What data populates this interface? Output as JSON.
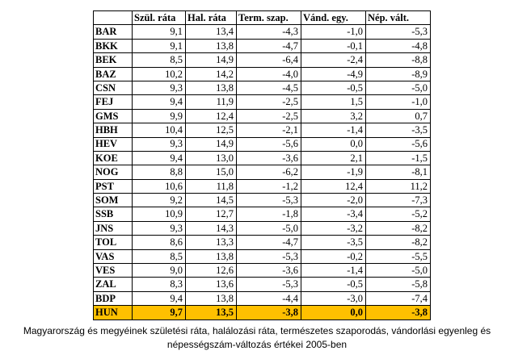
{
  "table": {
    "headers": [
      "",
      "Szül. ráta",
      "Hal. ráta",
      "Term. szap.",
      "Vánd. egy.",
      "Nép. vált."
    ],
    "rows": [
      [
        "BAR",
        "9,1",
        "13,4",
        "-4,3",
        "-1,0",
        "-5,3"
      ],
      [
        "BKK",
        "9,1",
        "13,8",
        "-4,7",
        "-0,1",
        "-4,8"
      ],
      [
        "BEK",
        "8,5",
        "14,9",
        "-6,4",
        "-2,4",
        "-8,8"
      ],
      [
        "BAZ",
        "10,2",
        "14,2",
        "-4,0",
        "-4,9",
        "-8,9"
      ],
      [
        "CSN",
        "9,3",
        "13,8",
        "-4,5",
        "-0,5",
        "-5,0"
      ],
      [
        "FEJ",
        "9,4",
        "11,9",
        "-2,5",
        "1,5",
        "-1,0"
      ],
      [
        "GMS",
        "9,9",
        "12,4",
        "-2,5",
        "3,2",
        "0,7"
      ],
      [
        "HBH",
        "10,4",
        "12,5",
        "-2,1",
        "-1,4",
        "-3,5"
      ],
      [
        "HEV",
        "9,3",
        "14,9",
        "-5,6",
        "0,0",
        "-5,6"
      ],
      [
        "KOE",
        "9,4",
        "13,0",
        "-3,6",
        "2,1",
        "-1,5"
      ],
      [
        "NOG",
        "8,8",
        "15,0",
        "-6,2",
        "-1,9",
        "-8,1"
      ],
      [
        "PST",
        "10,6",
        "11,8",
        "-1,2",
        "12,4",
        "11,2"
      ],
      [
        "SOM",
        "9,2",
        "14,5",
        "-5,3",
        "-2,0",
        "-7,3"
      ],
      [
        "SSB",
        "10,9",
        "12,7",
        "-1,8",
        "-3,4",
        "-5,2"
      ],
      [
        "JNS",
        "9,3",
        "14,3",
        "-5,0",
        "-3,2",
        "-8,2"
      ],
      [
        "TOL",
        "8,6",
        "13,3",
        "-4,7",
        "-3,5",
        "-8,2"
      ],
      [
        "VAS",
        "8,5",
        "13,8",
        "-5,3",
        "-0,2",
        "-5,5"
      ],
      [
        "VES",
        "9,0",
        "12,6",
        "-3,6",
        "-1,4",
        "-5,0"
      ],
      [
        "ZAL",
        "8,3",
        "13,6",
        "-5,3",
        "-0,5",
        "-5,8"
      ],
      [
        "BDP",
        "9,4",
        "13,8",
        "-4,4",
        "-3,0",
        "-7,4"
      ]
    ],
    "total": [
      "HUN",
      "9,7",
      "13,5",
      "-3,8",
      "0,0",
      "-3,8"
    ],
    "highlight_color": "#ffc000"
  },
  "caption": {
    "line1": "Magyarország és megyéinek születési ráta, halálozási ráta, természetes szaporodás, vándorlási egyenleg és",
    "line2": "népességszám-változás értékei 2005-ben"
  }
}
